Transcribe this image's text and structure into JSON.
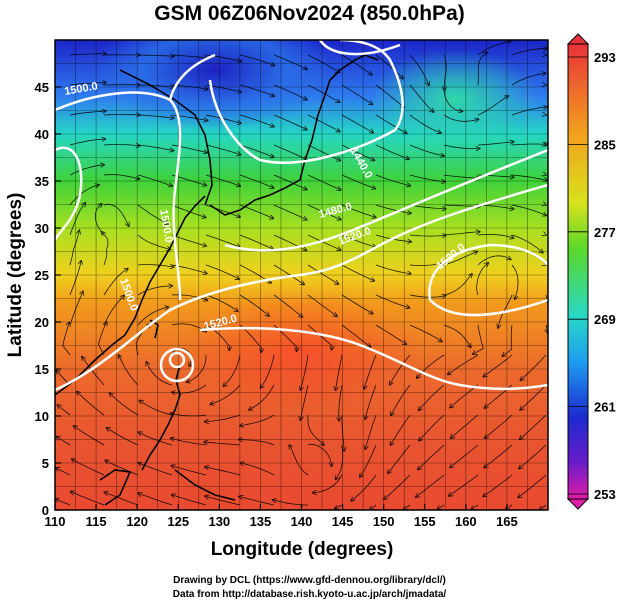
{
  "title": "GSM 06Z06Nov2024 (850.0hPa)",
  "xaxis": {
    "label": "Longitude (degrees)",
    "min": 110,
    "max": 170,
    "ticks": [
      "110",
      "115",
      "120",
      "125",
      "130",
      "135",
      "140",
      "145",
      "150",
      "155",
      "160",
      "165"
    ]
  },
  "yaxis": {
    "label": "Latitude (degrees)",
    "min": 0,
    "max": 50,
    "ticks": [
      "0",
      "5",
      "10",
      "15",
      "20",
      "25",
      "30",
      "35",
      "40",
      "45"
    ]
  },
  "colorbar": {
    "min": 253,
    "max": 293,
    "tick_labels": [
      "293",
      "285",
      "277",
      "269",
      "261",
      "253"
    ]
  },
  "contour_labels": [
    "1500.0",
    "1440.0",
    "1480.0",
    "1520.0",
    "1500.0",
    "1520.0",
    "1520.0",
    "1500.0"
  ],
  "footer": {
    "line1": "Drawing by DCL (https://www.gfd-dennou.org/library/dcl/)",
    "line2": "Data from http://database.rish.kyoto-u.ac.jp/arch/jmadata/"
  },
  "colors": {
    "warm": "#e9552a",
    "hot": "#ff2a2a",
    "cold": "#1f1fcf",
    "contour": "#ffffff",
    "coast": "#000000"
  }
}
